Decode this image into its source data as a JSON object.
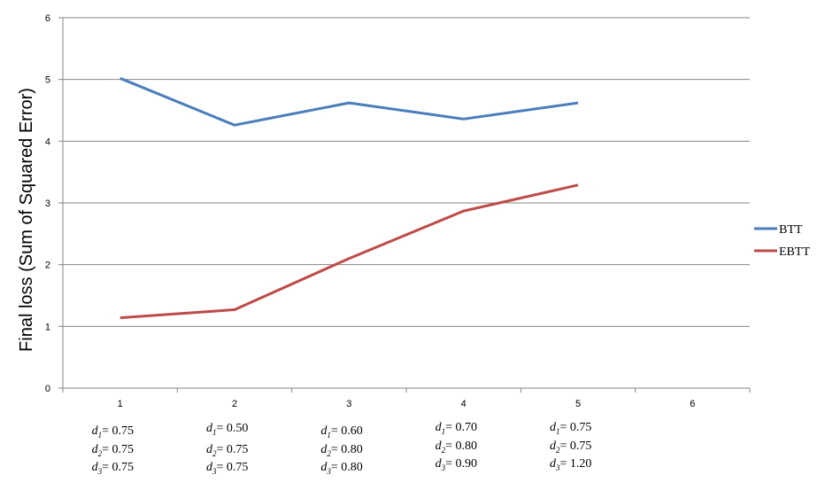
{
  "chart_data": {
    "type": "line",
    "ylabel": "Final loss (Sum of Squared Error)",
    "xlabel": "",
    "title": "",
    "x": [
      1,
      2,
      3,
      4,
      5,
      6
    ],
    "x_tick_labels": [
      "1",
      "2",
      "3",
      "4",
      "5",
      "6"
    ],
    "ylim": [
      0,
      6
    ],
    "y_ticks": [
      0,
      1,
      2,
      3,
      4,
      5,
      6
    ],
    "y_tick_labels": [
      "0",
      "1",
      "2",
      "3",
      "4",
      "5",
      "6"
    ],
    "grid": "horizontal",
    "legend_position": "right",
    "series": [
      {
        "name": "BTT",
        "color": "#4a7ebb",
        "x": [
          1,
          2,
          3,
          4,
          5
        ],
        "values": [
          5.02,
          4.26,
          4.62,
          4.36,
          4.62
        ]
      },
      {
        "name": "EBTT",
        "color": "#be4b48",
        "x": [
          1,
          2,
          3,
          4,
          5
        ],
        "values": [
          1.14,
          1.27,
          2.1,
          2.87,
          3.29
        ]
      }
    ],
    "param_labels": [
      {
        "x": 1,
        "lines": [
          {
            "sub": "1",
            "val": "= 0.75"
          },
          {
            "sub": "2",
            "val": "= 0.75"
          },
          {
            "sub": "3",
            "val": "= 0.75"
          }
        ]
      },
      {
        "x": 2,
        "lines": [
          {
            "sub": "1",
            "val": "= 0.50"
          },
          {
            "sub": "2",
            "val": "= 0.75"
          },
          {
            "sub": "3",
            "val": "= 0.75"
          }
        ]
      },
      {
        "x": 3,
        "lines": [
          {
            "sub": "1",
            "val": "= 0.60"
          },
          {
            "sub": "2",
            "val": "= 0.80"
          },
          {
            "sub": "3",
            "val": "= 0.80"
          }
        ]
      },
      {
        "x": 4,
        "lines": [
          {
            "sub": "1",
            "val": "= 0.70"
          },
          {
            "sub": "2",
            "val": "= 0.80"
          },
          {
            "sub": "3",
            "val": "= 0.90"
          }
        ]
      },
      {
        "x": 5,
        "lines": [
          {
            "sub": "1",
            "val": "= 0.75"
          },
          {
            "sub": "2",
            "val": "= 0.75"
          },
          {
            "sub": "3",
            "val": "= 1.20"
          }
        ]
      }
    ],
    "param_symbol": "d"
  }
}
